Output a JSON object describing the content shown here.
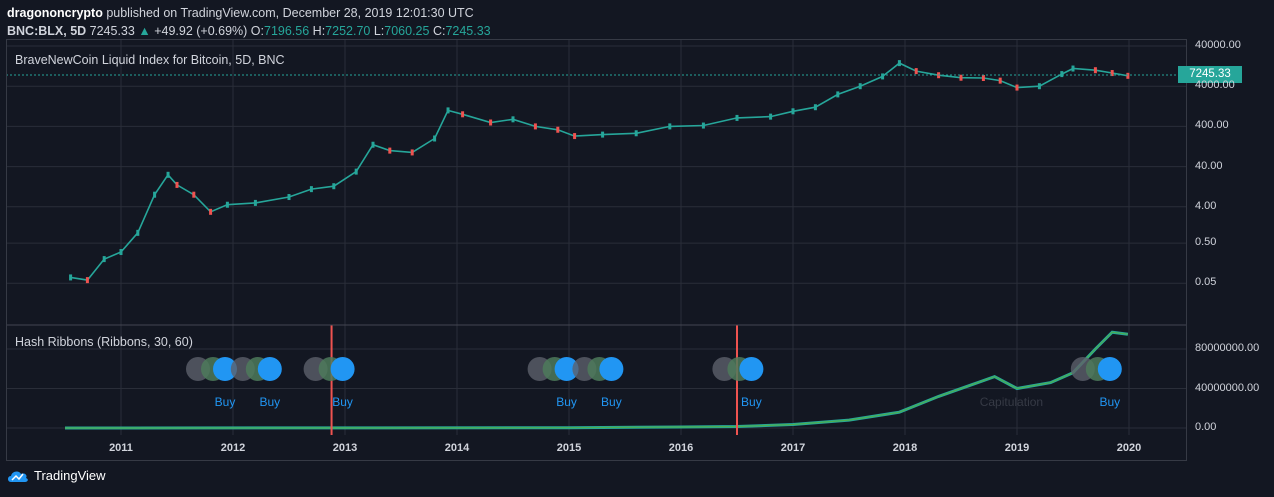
{
  "header": {
    "author": "dragononcrypto",
    "published": "published on TradingView.com, December 28, 2019 12:01:30 UTC",
    "symbol": "BNC:BLX, 5D",
    "last": "7245.33",
    "change_arrow": "▲",
    "change": "+49.92 (+0.69%)",
    "o_label": "O:",
    "o_value": "7196.56",
    "h_label": "H:",
    "h_value": "7252.70",
    "l_label": "L:",
    "l_value": "7060.25",
    "c_label": "C:",
    "c_value": "7245.33"
  },
  "price_pane": {
    "title": "BraveNewCoin Liquid Index for Bitcoin, 5D, BNC",
    "price_tag": "7245.33"
  },
  "hash_pane": {
    "title": "Hash Ribbons (Ribbons, 30, 60)"
  },
  "footer": {
    "brand": "TradingView"
  },
  "colors": {
    "background": "#131722",
    "up": "#26a69a",
    "down": "#ef5350",
    "signal_blue": "#2196f3",
    "signal_green": "#00e676",
    "grey": "#5d606b"
  },
  "chart_data": [
    {
      "type": "line",
      "title": "BraveNewCoin Liquid Index for Bitcoin, 5D, BNC",
      "scale": "log",
      "y_ticks": [
        "40000.00",
        "4000.00",
        "400.00",
        "40.00",
        "4.00",
        "0.50",
        "0.05"
      ],
      "x_ticks": [
        "2011",
        "2012",
        "2013",
        "2014",
        "2015",
        "2016",
        "2017",
        "2018",
        "2019",
        "2020"
      ],
      "series": [
        {
          "x": [
            2010.55,
            2010.7,
            2010.85,
            2011.0,
            2011.15,
            2011.3,
            2011.42,
            2011.5,
            2011.65,
            2011.8,
            2011.95,
            2012.2,
            2012.5,
            2012.7,
            2012.9,
            2013.1,
            2013.25,
            2013.4,
            2013.6,
            2013.8,
            2013.92,
            2014.05,
            2014.3,
            2014.5,
            2014.7,
            2014.9,
            2015.05,
            2015.3,
            2015.6,
            2015.9,
            2016.2,
            2016.5,
            2016.8,
            2017.0,
            2017.2,
            2017.4,
            2017.6,
            2017.8,
            2017.95,
            2018.1,
            2018.3,
            2018.5,
            2018.7,
            2018.85,
            2019.0,
            2019.2,
            2019.4,
            2019.5,
            2019.7,
            2019.85,
            2019.99
          ],
          "values": [
            0.07,
            0.06,
            0.2,
            0.3,
            0.9,
            8,
            25,
            14,
            8,
            3,
            4.5,
            5,
            7,
            11,
            13,
            30,
            140,
            100,
            90,
            200,
            1000,
            800,
            500,
            600,
            400,
            330,
            230,
            250,
            270,
            400,
            420,
            650,
            700,
            950,
            1200,
            2500,
            4000,
            7000,
            15000,
            9500,
            7500,
            6500,
            6400,
            5500,
            3700,
            4000,
            8000,
            11000,
            10000,
            8500,
            7245.33
          ]
        }
      ]
    },
    {
      "type": "line",
      "title": "Hash Ribbons (Ribbons, 30, 60)",
      "y_ticks": [
        "80000000.00",
        "40000000.00",
        "0.00"
      ],
      "x_ticks": [
        "2011",
        "2012",
        "2013",
        "2014",
        "2015",
        "2016",
        "2017",
        "2018",
        "2019",
        "2020"
      ],
      "annotations": [
        "Capitulation",
        "Buy"
      ],
      "buy_signals": [
        2012.0,
        2012.4,
        2013.05,
        2015.05,
        2015.45,
        2016.7,
        2019.9
      ],
      "capitulation_lines": [
        2012.88,
        2016.5
      ],
      "series": [
        {
          "x": [
            2010.5,
            2013.0,
            2015.0,
            2016.0,
            2016.5,
            2017.0,
            2017.5,
            2017.95,
            2018.3,
            2018.6,
            2018.8,
            2019.0,
            2019.3,
            2019.5,
            2019.7,
            2019.85,
            2019.99
          ],
          "values": [
            0,
            100000,
            300000,
            1000000,
            1500000,
            3500000,
            8000000,
            16000000,
            32000000,
            44000000,
            52000000,
            40000000,
            46000000,
            56000000,
            80000000,
            97000000,
            95000000
          ]
        }
      ]
    }
  ]
}
